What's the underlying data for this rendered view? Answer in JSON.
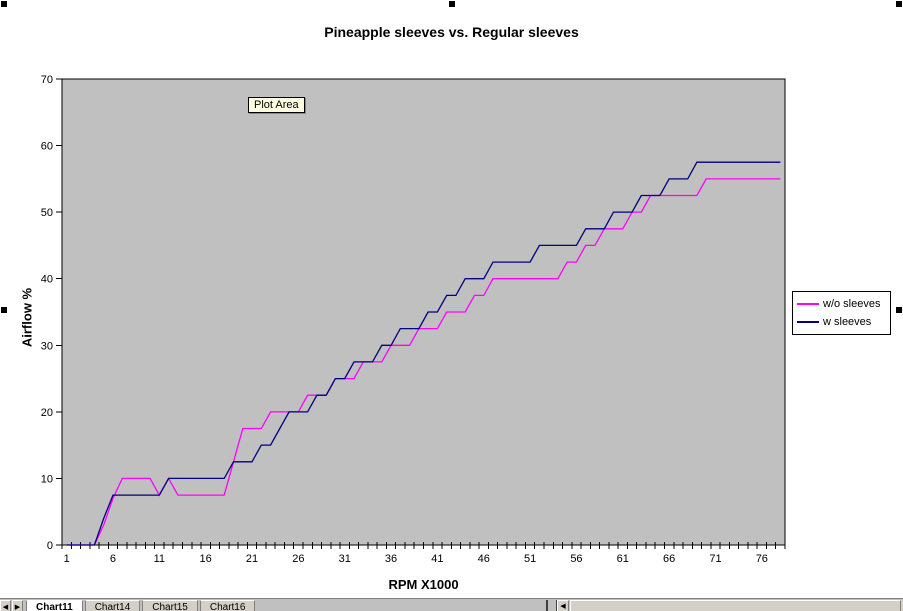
{
  "chart": {
    "tooltip": "Plot Area"
  },
  "chart_data": {
    "type": "line",
    "title": "Pineapple sleeves vs. Regular sleeves",
    "xlabel": "RPM X1000",
    "ylabel": "Airflow %",
    "ylim": [
      0,
      70
    ],
    "y_ticks": [
      0,
      10,
      20,
      30,
      40,
      50,
      60,
      70
    ],
    "x_tick_labels": [
      1,
      6,
      11,
      16,
      21,
      26,
      31,
      36,
      41,
      46,
      51,
      56,
      61,
      66,
      71,
      76
    ],
    "n_categories": 78,
    "grid": false,
    "plot_bg": "#C0C0C0",
    "legend_position": "right",
    "series": [
      {
        "name": "w/o sleeves",
        "color": "#FF00FF",
        "values": [
          0,
          0,
          0,
          0,
          3,
          7,
          10,
          10,
          10,
          10,
          7.5,
          10,
          7.5,
          7.5,
          7.5,
          7.5,
          7.5,
          7.5,
          12.5,
          17.5,
          17.5,
          17.5,
          20,
          20,
          20,
          20,
          22.5,
          22.5,
          22.5,
          25,
          25,
          25,
          27.5,
          27.5,
          27.5,
          30,
          30,
          30,
          32.5,
          32.5,
          32.5,
          35,
          35,
          35,
          37.5,
          37.5,
          40,
          40,
          40,
          40,
          40,
          40,
          40,
          40,
          42.5,
          42.5,
          45,
          45,
          47.5,
          47.5,
          47.5,
          50,
          50,
          52.5,
          52.5,
          52.5,
          52.5,
          52.5,
          52.5,
          55,
          55,
          55,
          55,
          55,
          55,
          55,
          55,
          55
        ]
      },
      {
        "name": "w sleeves",
        "color": "#000080",
        "values": [
          0,
          0,
          0,
          0,
          4,
          7.5,
          7.5,
          7.5,
          7.5,
          7.5,
          7.5,
          10,
          10,
          10,
          10,
          10,
          10,
          10,
          12.5,
          12.5,
          12.5,
          15,
          15,
          17.5,
          20,
          20,
          20,
          22.5,
          22.5,
          25,
          25,
          27.5,
          27.5,
          27.5,
          30,
          30,
          32.5,
          32.5,
          32.5,
          35,
          35,
          37.5,
          37.5,
          40,
          40,
          40,
          42.5,
          42.5,
          42.5,
          42.5,
          42.5,
          45,
          45,
          45,
          45,
          45,
          47.5,
          47.5,
          47.5,
          50,
          50,
          50,
          52.5,
          52.5,
          52.5,
          55,
          55,
          55,
          57.5,
          57.5,
          57.5,
          57.5,
          57.5,
          57.5,
          57.5,
          57.5,
          57.5,
          57.5
        ]
      }
    ]
  },
  "sheet_tabs": {
    "scroll_left": "◀",
    "scroll_right": "▶",
    "hscroll_left": "◀",
    "tabs": [
      {
        "label": "Chart11"
      },
      {
        "label": "Chart14"
      },
      {
        "label": "Chart15"
      },
      {
        "label": "Chart16"
      }
    ]
  }
}
